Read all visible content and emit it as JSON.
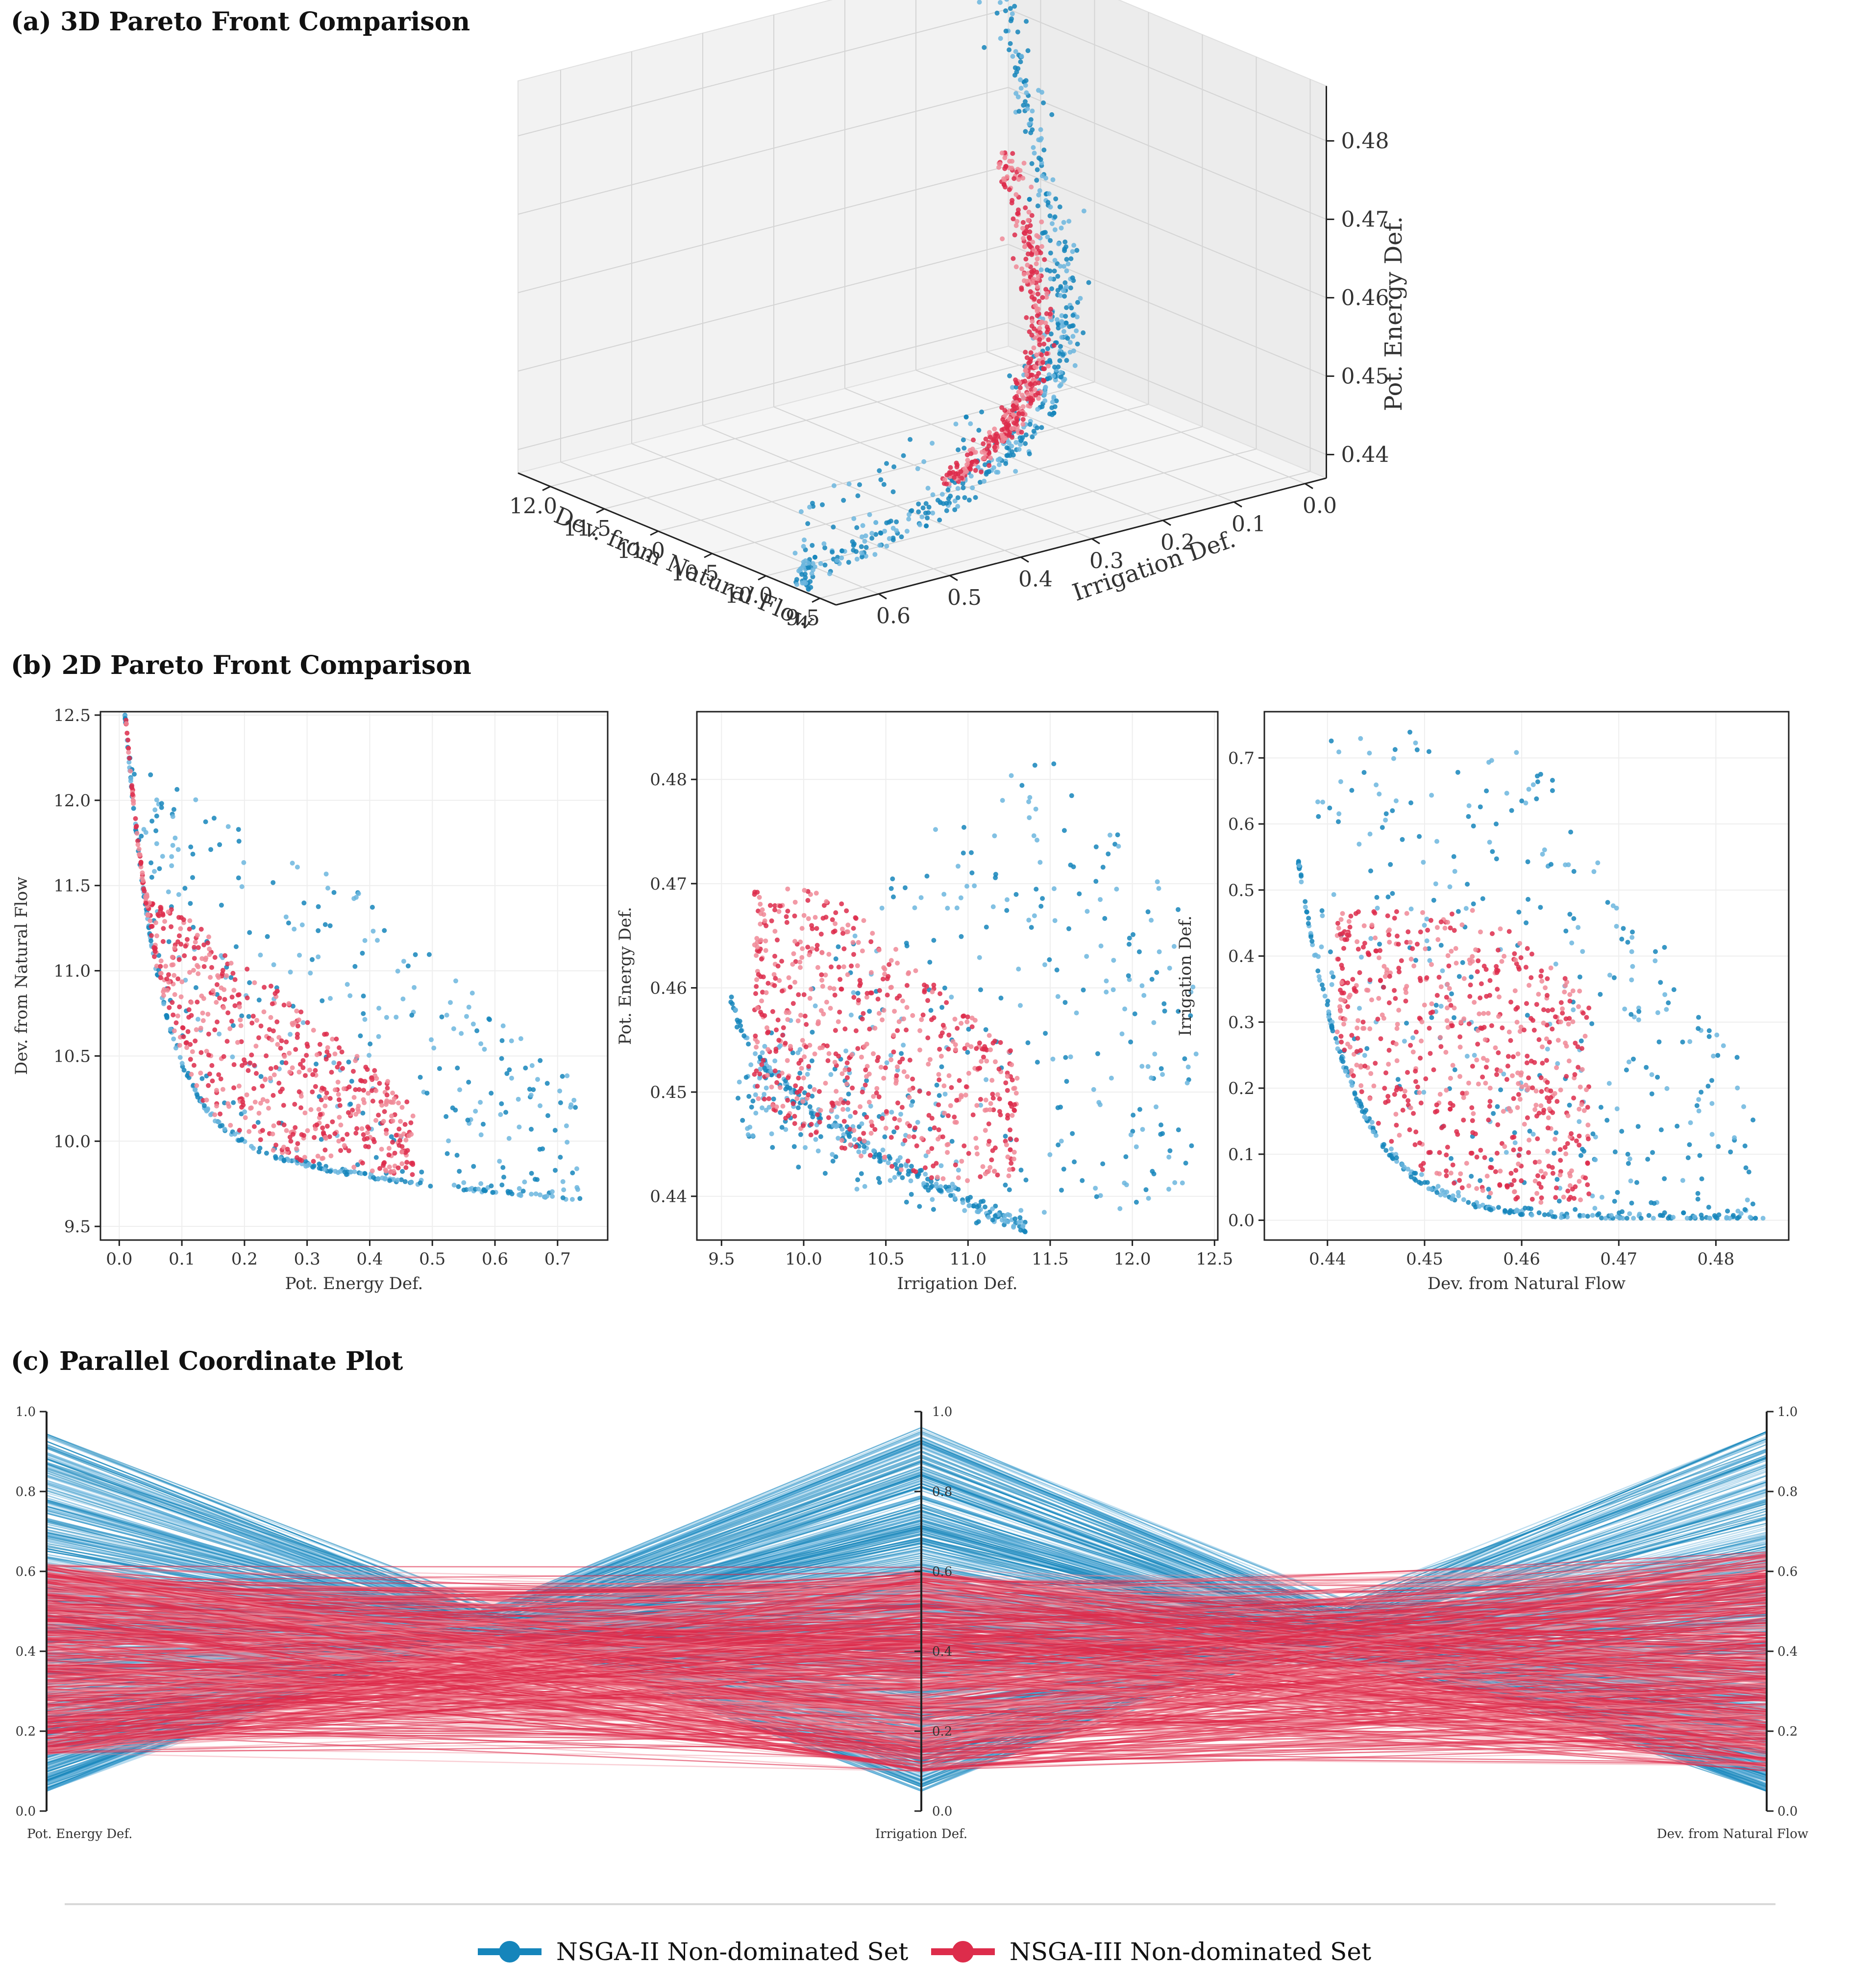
{
  "colors": {
    "nsga2": "#1585bb",
    "nsga3": "#dd2c4b",
    "nsga2_light": "#6cb6de",
    "nsga3_light": "#f08896",
    "grid": "#e6e6e6",
    "frame": "#222222"
  },
  "panels": {
    "a": {
      "title": "(a) 3D Pareto Front Comparison"
    },
    "b": {
      "title": "(b) 2D Pareto Front Comparison"
    },
    "c": {
      "title": "(c) Parallel Coordinate Plot"
    }
  },
  "legend": [
    {
      "label": "NSGA-II Non-dominated Set",
      "color": "#1585bb"
    },
    {
      "label": "NSGA-III Non-dominated Set",
      "color": "#dd2c4b"
    }
  ],
  "chart_data": [
    {
      "type": "scatter",
      "title": "(a) 3D Pareto Front Comparison",
      "axes3d": {
        "x": {
          "label": "Dev. from Natural Flow",
          "range": [
            9.5,
            12.3
          ],
          "ticks": [
            "12.0",
            "11.5",
            "11.0",
            "10.5",
            "10.0",
            "9.5"
          ]
        },
        "y": {
          "label": "Irrigation Def.",
          "range": [
            0.0,
            0.7
          ],
          "ticks": [
            "0.6",
            "0.5",
            "0.4",
            "0.3",
            "0.2",
            "0.1",
            "0.0"
          ]
        },
        "z": {
          "label": "Pot. Energy Def.",
          "range": [
            0.436,
            0.486
          ],
          "ticks": [
            "0.48",
            "0.47",
            "0.46",
            "0.45",
            "0.44"
          ]
        }
      },
      "series": [
        {
          "name": "NSGA-II Non-dominated Set",
          "points": [
            [
              9.6,
              0.0,
              0.4455
            ],
            [
              9.8,
              0.005,
              0.4432
            ],
            [
              10.0,
              0.01,
              0.4412
            ],
            [
              10.2,
              0.02,
              0.4398
            ],
            [
              10.4,
              0.04,
              0.4392
            ],
            [
              10.6,
              0.08,
              0.439
            ],
            [
              10.8,
              0.15,
              0.4392
            ],
            [
              11.0,
              0.25,
              0.4405
            ],
            [
              11.3,
              0.38,
              0.4435
            ],
            [
              11.6,
              0.5,
              0.4475
            ],
            [
              12.0,
              0.62,
              0.454
            ],
            [
              12.4,
              0.74,
              0.465
            ]
          ]
        },
        {
          "name": "NSGA-III Non-dominated Set",
          "points": [
            [
              9.7,
              0.1,
              0.441
            ],
            [
              10.0,
              0.12,
              0.4415
            ],
            [
              10.3,
              0.15,
              0.442
            ],
            [
              10.6,
              0.2,
              0.443
            ],
            [
              10.9,
              0.28,
              0.4445
            ],
            [
              11.2,
              0.35,
              0.4465
            ],
            [
              11.4,
              0.42,
              0.449
            ]
          ]
        }
      ]
    },
    {
      "type": "scatter",
      "xlabel": "Pot. Energy Def.",
      "ylabel": "Dev. from Natural Flow",
      "xlim": [
        -0.03,
        0.78
      ],
      "ylim": [
        9.42,
        12.52
      ],
      "xticks": [
        "0.0",
        "0.1",
        "0.2",
        "0.3",
        "0.4",
        "0.5",
        "0.6",
        "0.7"
      ],
      "yticks": [
        "9.5",
        "10.0",
        "10.5",
        "11.0",
        "11.5",
        "12.0",
        "12.5"
      ],
      "series": [
        {
          "name": "NSGA-II Non-dominated Set",
          "points": [
            [
              0.0,
              12.4
            ],
            [
              0.005,
              11.8
            ],
            [
              0.01,
              11.3
            ],
            [
              0.02,
              10.9
            ],
            [
              0.04,
              10.6
            ],
            [
              0.07,
              10.4
            ],
            [
              0.12,
              10.2
            ],
            [
              0.2,
              10.0
            ],
            [
              0.3,
              9.85
            ],
            [
              0.4,
              9.75
            ],
            [
              0.5,
              9.68
            ],
            [
              0.6,
              9.62
            ],
            [
              0.7,
              9.58
            ],
            [
              0.74,
              9.55
            ]
          ]
        },
        {
          "name": "NSGA-III Non-dominated Set",
          "points": [
            [
              0.02,
              11.4
            ],
            [
              0.05,
              11.0
            ],
            [
              0.1,
              10.6
            ],
            [
              0.2,
              10.3
            ],
            [
              0.3,
              10.1
            ],
            [
              0.4,
              9.9
            ],
            [
              0.47,
              9.72
            ]
          ]
        }
      ]
    },
    {
      "type": "scatter",
      "xlabel": "Irrigation Def.",
      "ylabel": "Pot. Energy Def.",
      "xlim": [
        9.35,
        12.52
      ],
      "ylim": [
        0.4358,
        0.4865
      ],
      "xticks": [
        "9.5",
        "10.0",
        "10.5",
        "11.0",
        "11.5",
        "12.0",
        "12.5"
      ],
      "yticks": [
        "0.44",
        "0.45",
        "0.46",
        "0.47",
        "0.48"
      ],
      "series": [
        {
          "name": "NSGA-II Non-dominated Set",
          "points": [
            [
              9.55,
              0.461
            ],
            [
              9.6,
              0.456
            ],
            [
              9.7,
              0.452
            ],
            [
              9.9,
              0.448
            ],
            [
              10.2,
              0.4445
            ],
            [
              10.6,
              0.4415
            ],
            [
              11.0,
              0.4385
            ],
            [
              11.25,
              0.437
            ],
            [
              11.6,
              0.4395
            ],
            [
              12.0,
              0.447
            ],
            [
              12.4,
              0.4545
            ],
            [
              11.4,
              0.4845
            ]
          ]
        },
        {
          "name": "NSGA-III Non-dominated Set",
          "points": [
            [
              9.7,
              0.461
            ],
            [
              10.0,
              0.465
            ],
            [
              10.2,
              0.469
            ],
            [
              10.6,
              0.455
            ],
            [
              11.0,
              0.448
            ],
            [
              11.2,
              0.445
            ]
          ]
        }
      ]
    },
    {
      "type": "scatter",
      "xlabel": "Dev. from Natural Flow",
      "ylabel": "Irrigation Def.",
      "xlim": [
        0.4335,
        0.4875
      ],
      "ylim": [
        -0.03,
        0.77
      ],
      "xticks": [
        "0.44",
        "0.45",
        "0.46",
        "0.47",
        "0.48"
      ],
      "yticks": [
        "0.0",
        "0.1",
        "0.2",
        "0.3",
        "0.4",
        "0.5",
        "0.6",
        "0.7"
      ],
      "series": [
        {
          "name": "NSGA-II Non-dominated Set",
          "points": [
            [
              0.437,
              0.54
            ],
            [
              0.438,
              0.45
            ],
            [
              0.44,
              0.35
            ],
            [
              0.443,
              0.22
            ],
            [
              0.446,
              0.1
            ],
            [
              0.449,
              0.03
            ],
            [
              0.452,
              0.005
            ],
            [
              0.46,
              0.005
            ],
            [
              0.47,
              0.005
            ],
            [
              0.48,
              0.005
            ],
            [
              0.485,
              0.005
            ],
            [
              0.458,
              0.74
            ]
          ]
        },
        {
          "name": "NSGA-III Non-dominated Set",
          "points": [
            [
              0.441,
              0.44
            ],
            [
              0.444,
              0.32
            ],
            [
              0.447,
              0.2
            ],
            [
              0.45,
              0.12
            ],
            [
              0.455,
              0.06
            ],
            [
              0.462,
              0.04
            ],
            [
              0.466,
              0.08
            ]
          ]
        }
      ]
    },
    {
      "type": "line",
      "title": "(c) Parallel Coordinate Plot",
      "axes": [
        "Pot. Energy Def.",
        "Irrigation Def.",
        "Dev. from Natural Flow"
      ],
      "ylim": [
        0.0,
        1.0
      ],
      "yticks": [
        "0.0",
        "0.2",
        "0.4",
        "0.6",
        "0.8",
        "1.0"
      ],
      "series": [
        {
          "name": "NSGA-II Non-dominated Set",
          "range_per_axis": [
            [
              0.05,
              0.95
            ],
            [
              0.05,
              0.96
            ],
            [
              0.05,
              0.95
            ]
          ]
        },
        {
          "name": "NSGA-III Non-dominated Set",
          "range_per_axis": [
            [
              0.12,
              0.63
            ],
            [
              0.1,
              0.61
            ],
            [
              0.1,
              0.66
            ]
          ]
        }
      ]
    }
  ]
}
